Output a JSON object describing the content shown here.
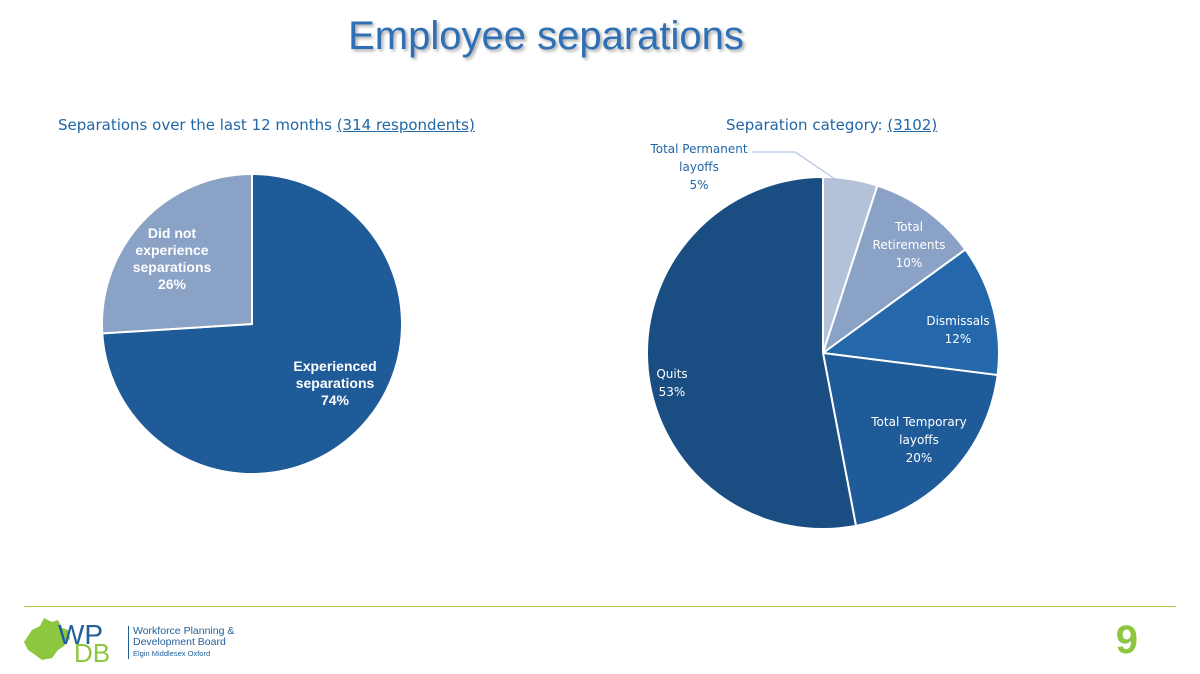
{
  "page": {
    "title": "Employee separations",
    "page_number": "9"
  },
  "logo": {
    "letters_top": "WP",
    "letters_bottom": "DB",
    "line1": "Workforce Planning &",
    "line2": "Development Board",
    "line3": "Elgin Middlesex Oxford"
  },
  "colors": {
    "title": "#2e6fb5",
    "accent_green": "#8dc63f",
    "footer_line": "#a8cf45"
  },
  "chart_data": [
    {
      "type": "pie",
      "title": "Separations over the last 12 months",
      "title_paren": "(314 respondents)",
      "slices": [
        {
          "name": "Experienced separations",
          "label_lines": [
            "Experienced",
            "separations"
          ],
          "value": 74,
          "pct_label": "74%",
          "color": "#1f5b99"
        },
        {
          "name": "Did not experience separations",
          "label_lines": [
            "Did not",
            "experience",
            "separations"
          ],
          "value": 26,
          "pct_label": "26%",
          "color": "#8aa2c5"
        }
      ]
    },
    {
      "type": "pie",
      "title": "Separation category:",
      "title_paren": "(3102)",
      "slices": [
        {
          "name": "Total Permanent layoffs",
          "label_lines": [
            "Total Permanent",
            "layoffs"
          ],
          "value": 5,
          "pct_label": "5%",
          "color": "#b4c2d9"
        },
        {
          "name": "Total Retirements",
          "label_lines": [
            "Total",
            "Retirements"
          ],
          "value": 10,
          "pct_label": "10%",
          "color": "#8aa2c5"
        },
        {
          "name": "Dismissals",
          "label_lines": [
            "Dismissals"
          ],
          "value": 12,
          "pct_label": "12%",
          "color": "#2468ab"
        },
        {
          "name": "Total Temporary layoffs",
          "label_lines": [
            "Total Temporary",
            "layoffs"
          ],
          "value": 20,
          "pct_label": "20%",
          "color": "#1f5b99"
        },
        {
          "name": "Quits",
          "label_lines": [
            "Quits"
          ],
          "value": 53,
          "pct_label": "53%",
          "color": "#1a4e82"
        }
      ]
    }
  ]
}
